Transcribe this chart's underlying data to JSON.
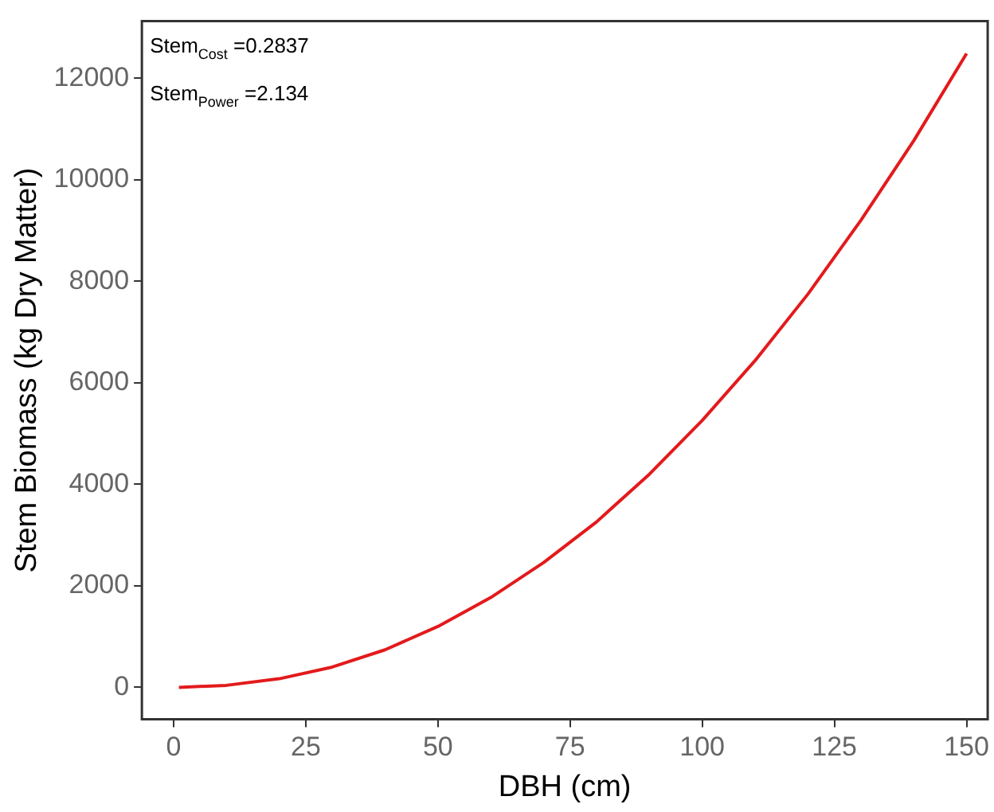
{
  "chart_data": {
    "type": "line",
    "xlabel": "DBH (cm)",
    "ylabel": "Stem Biomass (kg Dry Matter)",
    "annotations": [
      "Stem$_{Cost}$ =0.2837",
      "Stem$_{Power}$ =2.134"
    ],
    "x": [
      1,
      10,
      20,
      30,
      40,
      50,
      60,
      70,
      80,
      90,
      100,
      110,
      120,
      130,
      140,
      150
    ],
    "series": [
      {
        "color": "#e31a1c",
        "values": [
          0,
          40,
          170,
          400,
          740,
          1200,
          1770,
          2460,
          3260,
          4200,
          5260,
          6440,
          7750,
          9200,
          10770,
          12490
        ]
      }
    ],
    "xlim": [
      -6,
      154
    ],
    "xticks": [
      0,
      25,
      50,
      75,
      100,
      125,
      150
    ],
    "ylim": [
      -630,
      13130
    ],
    "yticks": [
      0,
      2000,
      4000,
      6000,
      8000,
      10000,
      12000
    ],
    "grid": false,
    "legend": false,
    "marker": "none",
    "line_style": "solid"
  }
}
